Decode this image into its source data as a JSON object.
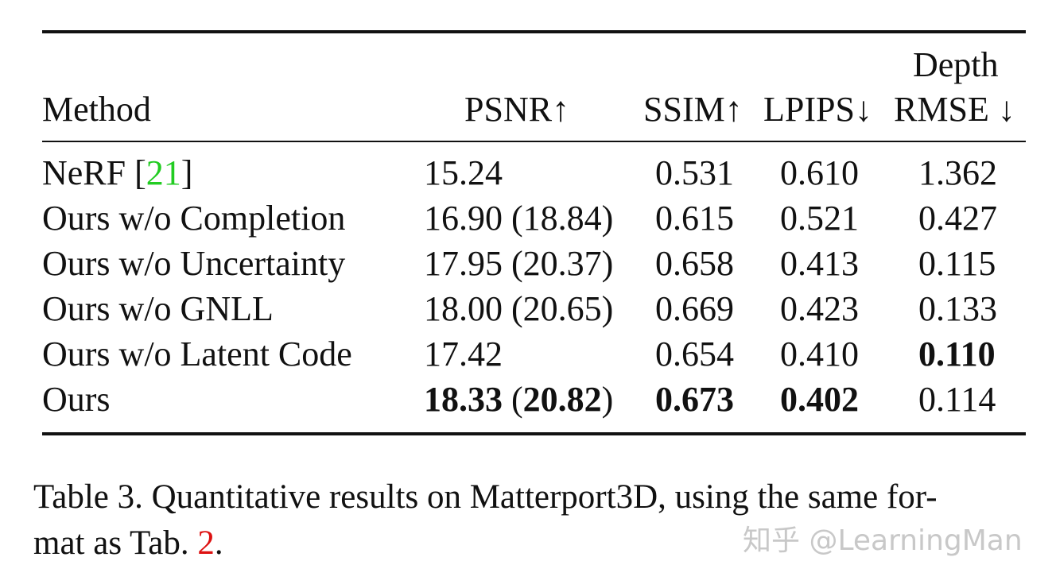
{
  "table": {
    "headers": {
      "method": "Method",
      "psnr": "PSNR↑",
      "ssim": "SSIM↑",
      "lpips": "LPIPS↓",
      "depth_line1": "Depth",
      "depth_line2": "RMSE ↓"
    },
    "rows": [
      {
        "method": "NeRF [",
        "ref": "21",
        "method_end": "]",
        "psnr": "15.24",
        "psnr_paren": "",
        "ssim": "0.531",
        "lpips": "0.610",
        "rmse": "1.362"
      },
      {
        "method": "Ours w/o Completion",
        "psnr": "16.90",
        "psnr_paren": "(18.84)",
        "ssim": "0.615",
        "lpips": "0.521",
        "rmse": "0.427"
      },
      {
        "method": "Ours w/o Uncertainty",
        "psnr": "17.95",
        "psnr_paren": "(20.37)",
        "ssim": "0.658",
        "lpips": "0.413",
        "rmse": "0.115"
      },
      {
        "method": "Ours w/o GNLL",
        "psnr": "18.00",
        "psnr_paren": "(20.65)",
        "ssim": "0.669",
        "lpips": "0.423",
        "rmse": "0.133"
      },
      {
        "method": "Ours w/o Latent Code",
        "psnr": "17.42",
        "psnr_paren": "",
        "ssim": "0.654",
        "lpips": "0.410",
        "rmse": "0.110"
      },
      {
        "method": "Ours",
        "psnr": "18.33",
        "psnr_paren_open": "(",
        "psnr_paren_val": "20.82",
        "psnr_paren_close": ")",
        "ssim": "0.673",
        "lpips": "0.402",
        "rmse": "0.114"
      }
    ]
  },
  "caption": {
    "line1": "Table 3. Quantitative results on Matterport3D, using the same for-",
    "line2_pre": "mat as Tab. ",
    "line2_ref": "2",
    "line2_post": "."
  },
  "watermark": "知乎 @LearningMan",
  "colors": {
    "ref_citation": "#22cc22",
    "ref_table": "#dd1111",
    "watermark": "#c8c8c8"
  }
}
